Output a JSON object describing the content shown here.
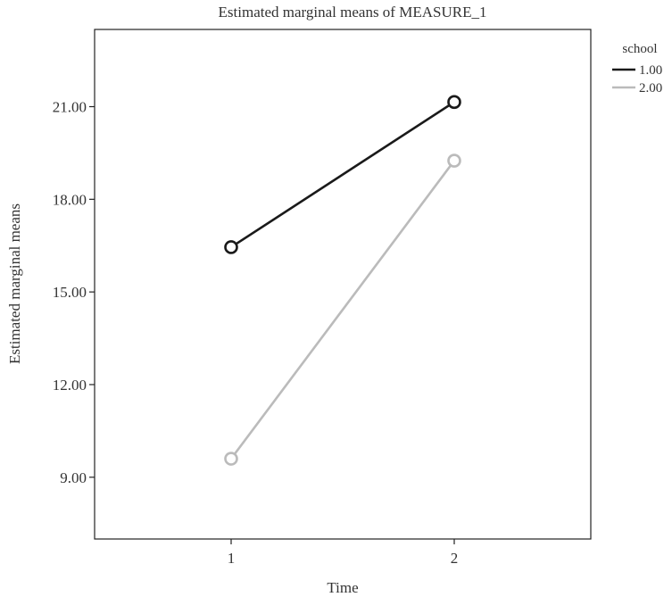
{
  "chart_data": {
    "type": "line",
    "title": "Estimated marginal means of MEASURE_1",
    "xlabel": "Time",
    "ylabel": "Estimated marginal means",
    "categories": [
      "1",
      "2"
    ],
    "yticks": [
      "9.00",
      "12.00",
      "15.00",
      "18.00",
      "21.00"
    ],
    "ylim": [
      7.0,
      23.5
    ],
    "legend_title": "school",
    "legend_position": "top-right outside",
    "grid": false,
    "series": [
      {
        "name": "1.00",
        "values": [
          16.45,
          21.15
        ],
        "color": "#1a1a1a"
      },
      {
        "name": "2.00",
        "values": [
          9.6,
          19.25
        ],
        "color": "#bbbbbb"
      }
    ]
  }
}
